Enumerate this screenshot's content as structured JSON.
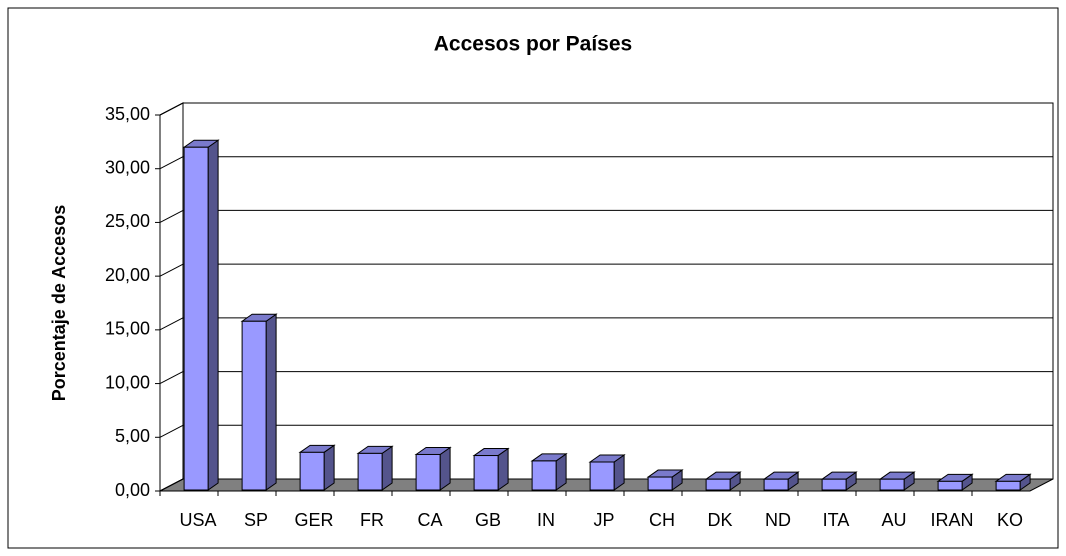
{
  "chart_data": {
    "type": "bar",
    "title": "Accesos por Países",
    "y_label": "Porcentaje de Accesos",
    "categories": [
      "USA",
      "SP",
      "GER",
      "FR",
      "CA",
      "GB",
      "IN",
      "JP",
      "CH",
      "DK",
      "ND",
      "ITA",
      "AU",
      "IRAN",
      "KO"
    ],
    "values": [
      32,
      15.8,
      3.6,
      3.5,
      3.4,
      3.3,
      2.8,
      2.7,
      1.3,
      1.1,
      1.1,
      1.1,
      1.1,
      0.9,
      0.9
    ],
    "color": "#9999ff",
    "ylim": [
      0,
      35
    ],
    "yticks": [
      {
        "value": 0,
        "label": "0,00"
      },
      {
        "value": 5,
        "label": "5,00"
      },
      {
        "value": 10,
        "label": "10,00"
      },
      {
        "value": 15,
        "label": "15,00"
      },
      {
        "value": 20,
        "label": "20,00"
      },
      {
        "value": 25,
        "label": "25,00"
      },
      {
        "value": 30,
        "label": "30,00"
      },
      {
        "value": 35,
        "label": "35,00"
      }
    ],
    "grid": true
  }
}
